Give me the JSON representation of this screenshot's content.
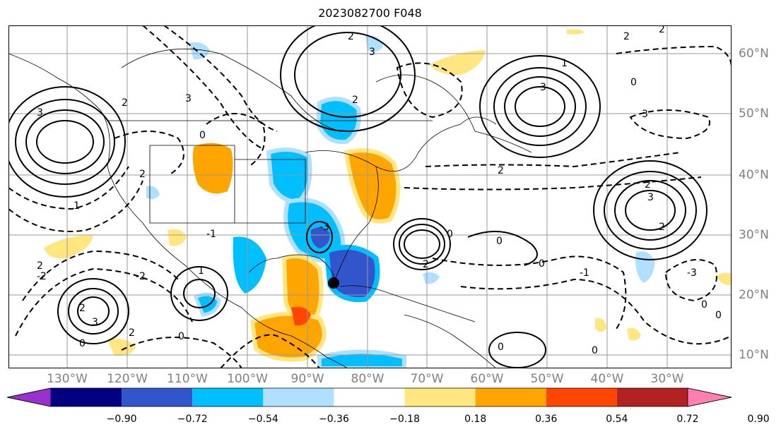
{
  "title": "2023082700 F048",
  "longitude_labels": [
    "130°W",
    "120°W",
    "110°W",
    "100°W",
    "90°W",
    "80°W",
    "70°W",
    "60°W",
    "50°W",
    "40°W",
    "30°W"
  ],
  "latitude_labels": [
    "60°N",
    "50°N",
    "40°N",
    "30°N",
    "20°N",
    "10°N"
  ],
  "colorbar": {
    "ticks": [
      "−0.90",
      "−0.72",
      "−0.54",
      "−0.36",
      "−0.18",
      "0.18",
      "0.36",
      "0.54",
      "0.72",
      "0.90"
    ],
    "colors": [
      "#9932cc",
      "#000080",
      "#3355cc",
      "#00bfff",
      "#b0e0ff",
      "#ffffff",
      "#ffe680",
      "#ffa500",
      "#ff4500",
      "#b22222",
      "#ff80b0"
    ]
  },
  "contour_labels": [
    "2",
    "3",
    "3",
    "2",
    "3",
    "0",
    "2",
    "2",
    "2",
    "3",
    "1",
    "1",
    "2",
    "0",
    "0",
    "3",
    "2",
    "0",
    "2",
    "2",
    "2",
    "2",
    "2",
    "1",
    "-3",
    "0",
    "3",
    "0",
    "2",
    "3",
    "-3",
    "0",
    "0",
    "0",
    "0",
    "0",
    "-1",
    "-2",
    "-2",
    "-1"
  ],
  "colors": {
    "positive_contour": "#000000",
    "negative_contour": "#000000",
    "grid": "#999999",
    "land_outline": "#000000"
  },
  "marker": "storm-center-marker"
}
